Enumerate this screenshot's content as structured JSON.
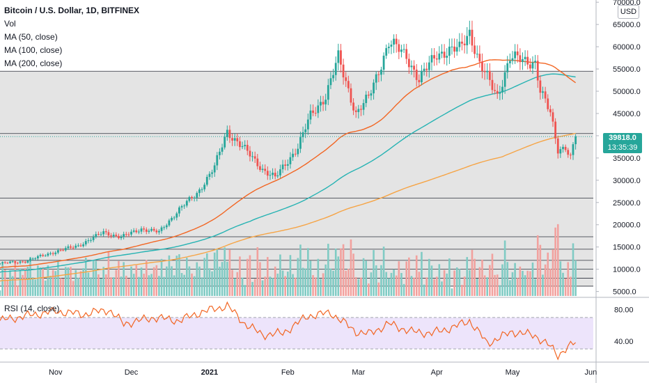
{
  "header": {
    "symbol": "Bitcoin / U.S. Dollar, 1D, BITFINEX",
    "indicators": [
      "Vol",
      "MA (50, close)",
      "MA (100, close)",
      "MA (200, close)"
    ],
    "rsi_label": "RSI (14, close)",
    "currency": "USD"
  },
  "last_price": {
    "value": "39818.0",
    "countdown": "13:35:39"
  },
  "colors": {
    "up": "#26a69a",
    "down": "#ef5350",
    "vol_up": "#80cbc4",
    "vol_down": "#f2a19e",
    "ma50": "#f26522",
    "ma100": "#26b3b3",
    "ma200": "#f6a445",
    "rsi_line": "#f26522",
    "rsi_band": "#ede4fb",
    "shade": "#e4e4e4"
  },
  "chart_data": [
    {
      "type": "candlestick",
      "title": "Bitcoin / U.S. Dollar, 1D, BITFINEX",
      "y_ticks": [
        "5000.0",
        "10000.0",
        "15000.0",
        "20000.0",
        "25000.0",
        "30000.0",
        "35000.0",
        "40000.0",
        "45000.0",
        "50000.0",
        "55000.0",
        "60000.0",
        "65000.0",
        "70000.0"
      ],
      "x_ticks": [
        "Nov",
        "Dec",
        "2021",
        "Feb",
        "Mar",
        "Apr",
        "May",
        "Jun"
      ],
      "ylim": [
        4000,
        70500
      ],
      "x_range": [
        "2020-10-10",
        "2021-06-02"
      ],
      "horizontal_levels": [
        54500,
        40500,
        26000,
        17300,
        14500,
        12000,
        10000,
        8000,
        6200
      ],
      "shaded_band": [
        6200,
        54500
      ],
      "series": [
        {
          "name": "MA (50, close)"
        },
        {
          "name": "MA (100, close)"
        },
        {
          "name": "MA (200, close)"
        }
      ],
      "path_points": [
        [
          "2020-10-10",
          11300
        ],
        [
          "2020-10-20",
          11800
        ],
        [
          "2020-10-31",
          13800
        ],
        [
          "2020-11-10",
          15300
        ],
        [
          "2020-11-20",
          18300
        ],
        [
          "2020-11-27",
          17200
        ],
        [
          "2020-12-05",
          19100
        ],
        [
          "2020-12-12",
          18300
        ],
        [
          "2020-12-20",
          23500
        ],
        [
          "2020-12-27",
          27000
        ],
        [
          "2021-01-03",
          33000
        ],
        [
          "2021-01-08",
          41000
        ],
        [
          "2021-01-14",
          37500
        ],
        [
          "2021-01-22",
          32500
        ],
        [
          "2021-01-27",
          30500
        ],
        [
          "2021-02-05",
          37500
        ],
        [
          "2021-02-10",
          44500
        ],
        [
          "2021-02-16",
          49000
        ],
        [
          "2021-02-21",
          57500
        ],
        [
          "2021-02-28",
          45000
        ],
        [
          "2021-03-05",
          48500
        ],
        [
          "2021-03-13",
          61000
        ],
        [
          "2021-03-20",
          58000
        ],
        [
          "2021-03-25",
          52500
        ],
        [
          "2021-04-01",
          58500
        ],
        [
          "2021-04-10",
          59500
        ],
        [
          "2021-04-14",
          63500
        ],
        [
          "2021-04-18",
          56000
        ],
        [
          "2021-04-25",
          49000
        ],
        [
          "2021-04-30",
          57500
        ],
        [
          "2021-05-10",
          56500
        ],
        [
          "2021-05-12",
          50000
        ],
        [
          "2021-05-16",
          45000
        ],
        [
          "2021-05-19",
          37000
        ],
        [
          "2021-05-22",
          37500
        ],
        [
          "2021-05-24",
          35000
        ],
        [
          "2021-05-26",
          39818
        ]
      ]
    },
    {
      "type": "line",
      "title": "RSI (14, close)",
      "y_ticks": [
        "40.00",
        "80.00"
      ],
      "ylim": [
        15,
        93
      ],
      "band": [
        30,
        70
      ],
      "x_range": [
        "2020-10-10",
        "2021-06-02"
      ],
      "x": [
        "2020-10-10",
        "2020-10-20",
        "2020-11-01",
        "2020-11-12",
        "2020-11-22",
        "2020-11-28",
        "2020-12-10",
        "2020-12-20",
        "2020-12-28",
        "2021-01-08",
        "2021-01-15",
        "2021-01-22",
        "2021-01-30",
        "2021-02-09",
        "2021-02-18",
        "2021-02-28",
        "2021-03-05",
        "2021-03-13",
        "2021-03-22",
        "2021-03-30",
        "2021-04-08",
        "2021-04-14",
        "2021-04-21",
        "2021-05-01",
        "2021-05-10",
        "2021-05-16",
        "2021-05-19",
        "2021-05-22",
        "2021-05-26"
      ],
      "values": [
        66,
        72,
        78,
        74,
        80,
        62,
        70,
        66,
        76,
        85,
        62,
        48,
        50,
        72,
        76,
        52,
        49,
        62,
        52,
        50,
        58,
        66,
        37,
        52,
        47,
        33,
        22,
        30,
        38
      ]
    }
  ]
}
